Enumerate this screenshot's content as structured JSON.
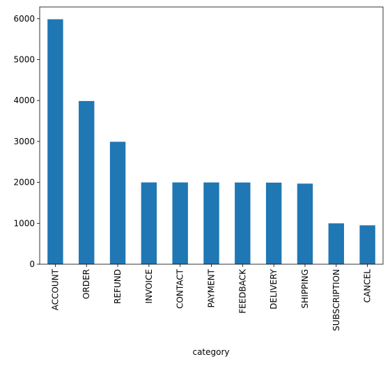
{
  "chart_data": {
    "type": "bar",
    "title": "",
    "xlabel": "category",
    "ylabel": "",
    "categories": [
      "ACCOUNT",
      "ORDER",
      "REFUND",
      "INVOICE",
      "CONTACT",
      "PAYMENT",
      "FEEDBACK",
      "DELIVERY",
      "SHIPPING",
      "SUBSCRIPTION",
      "CANCEL"
    ],
    "values": [
      5986,
      3988,
      2992,
      1999,
      1999,
      1998,
      1997,
      1994,
      1970,
      999,
      950
    ],
    "yticks": [
      "0",
      "1000",
      "2000",
      "3000",
      "4000",
      "5000",
      "6000"
    ],
    "ylim": [
      0,
      6286
    ],
    "grid": false,
    "legend": "none",
    "bar_color": "#1f77b4"
  }
}
